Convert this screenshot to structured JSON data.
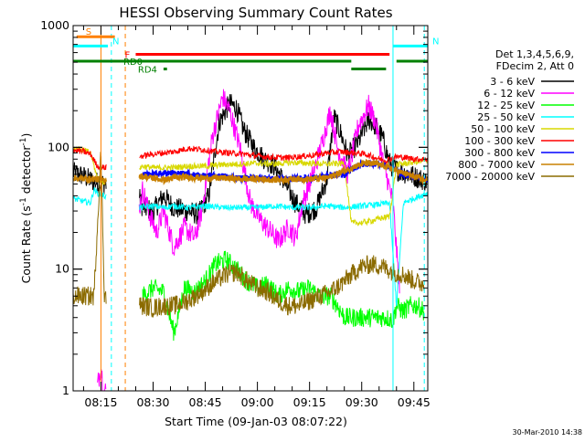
{
  "chart_data": {
    "type": "line",
    "title": "HESSI Observing Summary Count Rates",
    "xlabel": "Start Time (09-Jan-03 08:07:22)",
    "ylabel_main": "Count Rate (s",
    "ylabel_sup1": "-1",
    "ylabel_mid": " detector",
    "ylabel_sup2": "-1",
    "ylabel_end": ")",
    "yscale": "log",
    "xlim_min": [
      487,
      589
    ],
    "ylim": [
      1,
      1000
    ],
    "xticks_min": [
      495,
      510,
      525,
      540,
      555,
      570,
      585
    ],
    "xtick_labels": [
      "08:15",
      "08:30",
      "08:45",
      "09:00",
      "09:15",
      "09:30",
      "09:45"
    ],
    "yticks": [
      1,
      10,
      100,
      1000
    ],
    "ytick_labels": [
      "1",
      "10",
      "100",
      "1000"
    ],
    "legend_header": [
      "Det 1,3,4,5,6,9,",
      "FDecim 2, Att 0"
    ],
    "legend_location": "right",
    "series": [
      {
        "name": "3 - 6 keV",
        "color": "#000000",
        "key": [
          [
            487,
            62
          ],
          [
            490,
            58
          ],
          [
            493,
            52
          ],
          [
            496,
            50
          ],
          [
            500,
            48
          ],
          [
            503,
            50
          ],
          [
            505,
            48
          ],
          [
            507,
            32
          ],
          [
            510,
            30
          ],
          [
            513,
            40
          ],
          [
            516,
            32
          ],
          [
            520,
            30
          ],
          [
            523,
            28
          ],
          [
            526,
            40
          ],
          [
            529,
            160
          ],
          [
            532,
            230
          ],
          [
            534,
            210
          ],
          [
            536,
            140
          ],
          [
            539,
            100
          ],
          [
            542,
            80
          ],
          [
            545,
            70
          ],
          [
            548,
            50
          ],
          [
            551,
            35
          ],
          [
            554,
            28
          ],
          [
            557,
            32
          ],
          [
            560,
            55
          ],
          [
            562,
            180
          ],
          [
            564,
            130
          ],
          [
            566,
            85
          ],
          [
            569,
            110
          ],
          [
            572,
            170
          ],
          [
            574,
            150
          ],
          [
            576,
            120
          ],
          [
            578,
            75
          ],
          [
            579,
            68
          ],
          [
            582,
            62
          ],
          [
            585,
            58
          ],
          [
            587,
            55
          ],
          [
            589,
            52
          ]
        ]
      },
      {
        "name": "6 - 12 keV",
        "color": "#ff00ff",
        "key": [
          [
            494,
            1.1
          ],
          [
            495,
            1.6
          ],
          [
            496,
            0.9
          ],
          [
            507,
            45
          ],
          [
            509,
            28
          ],
          [
            511,
            20
          ],
          [
            513,
            30
          ],
          [
            516,
            15
          ],
          [
            519,
            22
          ],
          [
            522,
            18
          ],
          [
            524,
            30
          ],
          [
            527,
            120
          ],
          [
            530,
            260
          ],
          [
            532,
            200
          ],
          [
            535,
            100
          ],
          [
            538,
            35
          ],
          [
            541,
            25
          ],
          [
            544,
            20
          ],
          [
            546,
            17
          ],
          [
            549,
            22
          ],
          [
            551,
            18
          ],
          [
            553,
            35
          ],
          [
            556,
            60
          ],
          [
            559,
            120
          ],
          [
            561,
            200
          ],
          [
            563,
            100
          ],
          [
            566,
            60
          ],
          [
            569,
            150
          ],
          [
            572,
            220
          ],
          [
            574,
            160
          ],
          [
            576,
            80
          ],
          [
            579,
            35
          ],
          [
            581,
            6
          ]
        ]
      },
      {
        "name": "12 - 25 keV",
        "color": "#00ff00",
        "key": [
          [
            507,
            6
          ],
          [
            510,
            7
          ],
          [
            513,
            6.5
          ],
          [
            516,
            3
          ],
          [
            519,
            7
          ],
          [
            522,
            6.5
          ],
          [
            525,
            8
          ],
          [
            528,
            11
          ],
          [
            531,
            12
          ],
          [
            534,
            10
          ],
          [
            537,
            8
          ],
          [
            540,
            7
          ],
          [
            543,
            7.5
          ],
          [
            546,
            6
          ],
          [
            549,
            7
          ],
          [
            552,
            6.5
          ],
          [
            555,
            7
          ],
          [
            558,
            6
          ],
          [
            561,
            6
          ],
          [
            563,
            5
          ],
          [
            565,
            4
          ],
          [
            569,
            4
          ],
          [
            572,
            4
          ],
          [
            575,
            4
          ],
          [
            577,
            4
          ],
          [
            579,
            3.8
          ],
          [
            580,
            5
          ],
          [
            582,
            4.5
          ],
          [
            584,
            5
          ],
          [
            586,
            5
          ],
          [
            588,
            4.5
          ]
        ]
      },
      {
        "name": "25 - 50 keV",
        "color": "#00ffff",
        "key": [
          [
            487,
            38
          ],
          [
            490,
            36
          ],
          [
            492,
            35
          ],
          [
            493,
            45
          ],
          [
            494,
            42
          ],
          [
            496,
            40
          ],
          [
            506,
            32
          ],
          [
            510,
            33
          ],
          [
            513,
            32
          ],
          [
            516,
            33
          ],
          [
            520,
            32
          ],
          [
            525,
            33
          ],
          [
            530,
            32
          ],
          [
            535,
            32
          ],
          [
            540,
            32
          ],
          [
            545,
            33
          ],
          [
            550,
            32
          ],
          [
            555,
            32
          ],
          [
            560,
            33
          ],
          [
            565,
            32
          ],
          [
            570,
            33
          ],
          [
            575,
            34
          ],
          [
            578,
            35
          ],
          [
            580,
            5
          ],
          [
            582,
            35
          ],
          [
            585,
            38
          ],
          [
            587,
            40
          ],
          [
            589,
            42
          ]
        ]
      },
      {
        "name": "50 - 100 keV",
        "color": "#d8d800",
        "key": [
          [
            487,
            98
          ],
          [
            490,
            95
          ],
          [
            492,
            90
          ],
          [
            494,
            55
          ],
          [
            496,
            52
          ],
          [
            507,
            70
          ],
          [
            510,
            68
          ],
          [
            515,
            68
          ],
          [
            520,
            70
          ],
          [
            525,
            70
          ],
          [
            530,
            72
          ],
          [
            535,
            73
          ],
          [
            540,
            74
          ],
          [
            545,
            73
          ],
          [
            550,
            75
          ],
          [
            555,
            74
          ],
          [
            560,
            73
          ],
          [
            565,
            74
          ],
          [
            567,
            24
          ],
          [
            570,
            24
          ],
          [
            573,
            25
          ],
          [
            575,
            26
          ],
          [
            578,
            27
          ],
          [
            580,
            72
          ],
          [
            583,
            74
          ],
          [
            586,
            76
          ],
          [
            589,
            78
          ]
        ]
      },
      {
        "name": "100 - 300 keV",
        "color": "#ff0000",
        "key": [
          [
            487,
            95
          ],
          [
            490,
            92
          ],
          [
            492,
            88
          ],
          [
            494,
            70
          ],
          [
            496,
            68
          ],
          [
            507,
            85
          ],
          [
            510,
            88
          ],
          [
            513,
            90
          ],
          [
            516,
            92
          ],
          [
            520,
            98
          ],
          [
            524,
            96
          ],
          [
            528,
            92
          ],
          [
            532,
            90
          ],
          [
            536,
            88
          ],
          [
            540,
            85
          ],
          [
            544,
            83
          ],
          [
            548,
            82
          ],
          [
            552,
            84
          ],
          [
            556,
            86
          ],
          [
            560,
            90
          ],
          [
            564,
            92
          ],
          [
            568,
            90
          ],
          [
            571,
            88
          ],
          [
            574,
            82
          ],
          [
            577,
            78
          ],
          [
            580,
            84
          ],
          [
            583,
            82
          ],
          [
            586,
            80
          ],
          [
            589,
            80
          ]
        ]
      },
      {
        "name": "300 - 800 keV",
        "color": "#0000ff",
        "key": [
          [
            507,
            60
          ],
          [
            510,
            60
          ],
          [
            515,
            62
          ],
          [
            520,
            60
          ],
          [
            525,
            58
          ],
          [
            530,
            58
          ],
          [
            535,
            56
          ],
          [
            540,
            56
          ],
          [
            545,
            55
          ],
          [
            550,
            55
          ],
          [
            555,
            56
          ],
          [
            560,
            58
          ],
          [
            565,
            60
          ],
          [
            568,
            68
          ],
          [
            570,
            72
          ],
          [
            573,
            74
          ],
          [
            576,
            72
          ],
          [
            579,
            66
          ],
          [
            582,
            60
          ],
          [
            585,
            58
          ],
          [
            589,
            54
          ]
        ]
      },
      {
        "name": "800 - 7000 keV",
        "color": "#c88000",
        "key": [
          [
            487,
            56
          ],
          [
            490,
            55
          ],
          [
            493,
            55
          ],
          [
            496,
            54
          ],
          [
            507,
            58
          ],
          [
            510,
            56
          ],
          [
            513,
            54
          ],
          [
            516,
            56
          ],
          [
            520,
            57
          ],
          [
            525,
            56
          ],
          [
            530,
            56
          ],
          [
            535,
            55
          ],
          [
            540,
            55
          ],
          [
            545,
            54
          ],
          [
            550,
            55
          ],
          [
            555,
            55
          ],
          [
            560,
            56
          ],
          [
            564,
            62
          ],
          [
            568,
            70
          ],
          [
            571,
            74
          ],
          [
            574,
            73
          ],
          [
            577,
            70
          ],
          [
            580,
            64
          ],
          [
            583,
            60
          ],
          [
            586,
            56
          ],
          [
            589,
            53
          ]
        ]
      },
      {
        "name": "7000 - 20000 keV",
        "color": "#8b6b00",
        "key": [
          [
            487,
            6
          ],
          [
            490,
            6
          ],
          [
            493,
            6
          ],
          [
            495,
            90
          ],
          [
            496,
            6
          ],
          [
            507,
            5
          ],
          [
            510,
            4.8
          ],
          [
            513,
            5
          ],
          [
            516,
            5
          ],
          [
            520,
            5.5
          ],
          [
            524,
            6.5
          ],
          [
            528,
            8
          ],
          [
            531,
            9
          ],
          [
            534,
            9.5
          ],
          [
            537,
            8
          ],
          [
            540,
            7
          ],
          [
            543,
            6.5
          ],
          [
            546,
            5.5
          ],
          [
            549,
            5
          ],
          [
            552,
            5
          ],
          [
            555,
            5.5
          ],
          [
            558,
            6
          ],
          [
            561,
            6.5
          ],
          [
            564,
            7.5
          ],
          [
            567,
            9
          ],
          [
            570,
            10.5
          ],
          [
            573,
            11
          ],
          [
            576,
            10.5
          ],
          [
            579,
            9.5
          ],
          [
            582,
            9
          ],
          [
            585,
            8
          ],
          [
            588,
            7.5
          ]
        ]
      }
    ],
    "flag_bars": [
      {
        "label": "S",
        "color": "#ff8000",
        "x": [
          488,
          499
        ],
        "y": 810,
        "label_color": "#ff8000"
      },
      {
        "label": "N",
        "color": "#00ffff",
        "x": [
          487,
          497
        ],
        "y": 680,
        "label_color": "#00ffff"
      },
      {
        "label": "N",
        "color": "#00ffff",
        "x": [
          579,
          589
        ],
        "y": 680,
        "label_color": "#00ffff"
      },
      {
        "label": "F",
        "color": "#ff0000",
        "x": [
          505,
          578
        ],
        "y": 580,
        "label_color": "#ff0000"
      },
      {
        "label": "RD0",
        "color": "#008000",
        "x": [
          487,
          567
        ],
        "y": 510,
        "label_color": "#008000"
      },
      {
        "label": "RD4",
        "color": "#008000",
        "x": [
          513,
          514
        ],
        "y": 440,
        "label_color": "#008000"
      },
      {
        "label": "",
        "color": "#008000",
        "x": [
          567,
          577
        ],
        "y": 440,
        "label_color": "#008000"
      },
      {
        "label": "",
        "color": "#008000",
        "x": [
          580,
          589
        ],
        "y": 510,
        "label_color": "#008000"
      }
    ],
    "vlines": [
      {
        "x": 495,
        "color": "#ff8000",
        "dashed": false
      },
      {
        "x": 498,
        "color": "#00ffff",
        "dashed": true
      },
      {
        "x": 502,
        "color": "#ff8000",
        "dashed": true
      },
      {
        "x": 579,
        "color": "#00ffff",
        "dashed": false
      },
      {
        "x": 588,
        "color": "#00ffff",
        "dashed": true
      }
    ],
    "timestamp": "30-Mar-2010 14:38"
  }
}
